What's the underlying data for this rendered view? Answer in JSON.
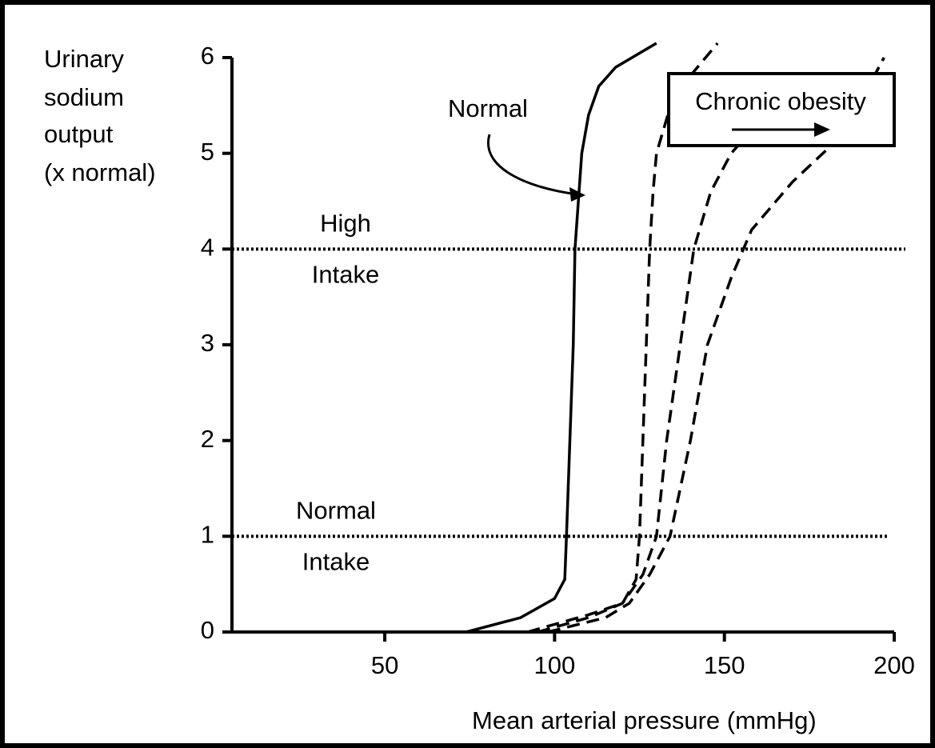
{
  "chart_data": {
    "type": "line",
    "ylabel": [
      "Urinary",
      "sodium",
      "output",
      "(x normal)"
    ],
    "xlabel": "Mean arterial pressure (mmHg)",
    "xlim": [
      5,
      200
    ],
    "ylim": [
      0,
      6
    ],
    "xticks": [
      50,
      100,
      150,
      200
    ],
    "yticks": [
      0,
      1,
      2,
      3,
      4,
      5,
      6
    ],
    "series": [
      {
        "color": "#000000",
        "dash": false,
        "x": [
          74,
          90,
          100,
          103,
          103.5,
          104.5,
          105.5,
          106,
          107,
          108,
          110,
          113,
          118,
          130
        ],
        "values": [
          0,
          0.15,
          0.35,
          0.55,
          1,
          2,
          3,
          4,
          4.5,
          5,
          5.4,
          5.7,
          5.9,
          6.15
        ]
      },
      {
        "color": "#000000",
        "dash": true,
        "x": [
          92,
          100,
          110,
          120,
          124,
          125,
          126,
          127,
          128,
          129,
          130,
          135,
          148
        ],
        "values": [
          0,
          0.08,
          0.18,
          0.3,
          0.55,
          1,
          2,
          3,
          4,
          4.6,
          5,
          5.6,
          6.15
        ]
      },
      {
        "color": "#000000",
        "dash": true,
        "x": [
          95,
          110,
          120,
          126,
          130,
          133,
          137,
          141,
          146,
          152,
          162,
          175
        ],
        "values": [
          0,
          0.15,
          0.3,
          0.6,
          1,
          2,
          3,
          4,
          4.6,
          5,
          5.4,
          5.8
        ]
      },
      {
        "color": "#000000",
        "dash": true,
        "x": [
          98,
          115,
          122,
          128,
          134,
          140,
          145,
          152,
          158,
          170,
          185,
          197
        ],
        "values": [
          0,
          0.15,
          0.3,
          0.6,
          1,
          2,
          3,
          3.7,
          4.2,
          4.7,
          5.2,
          6
        ]
      }
    ],
    "reference_lines": [
      {
        "value": 4,
        "labels": [
          "High",
          "Intake"
        ]
      },
      {
        "value": 1,
        "labels": [
          "Normal",
          "Intake"
        ]
      }
    ],
    "annotations": [
      "Normal",
      "Chronic obesity"
    ]
  }
}
